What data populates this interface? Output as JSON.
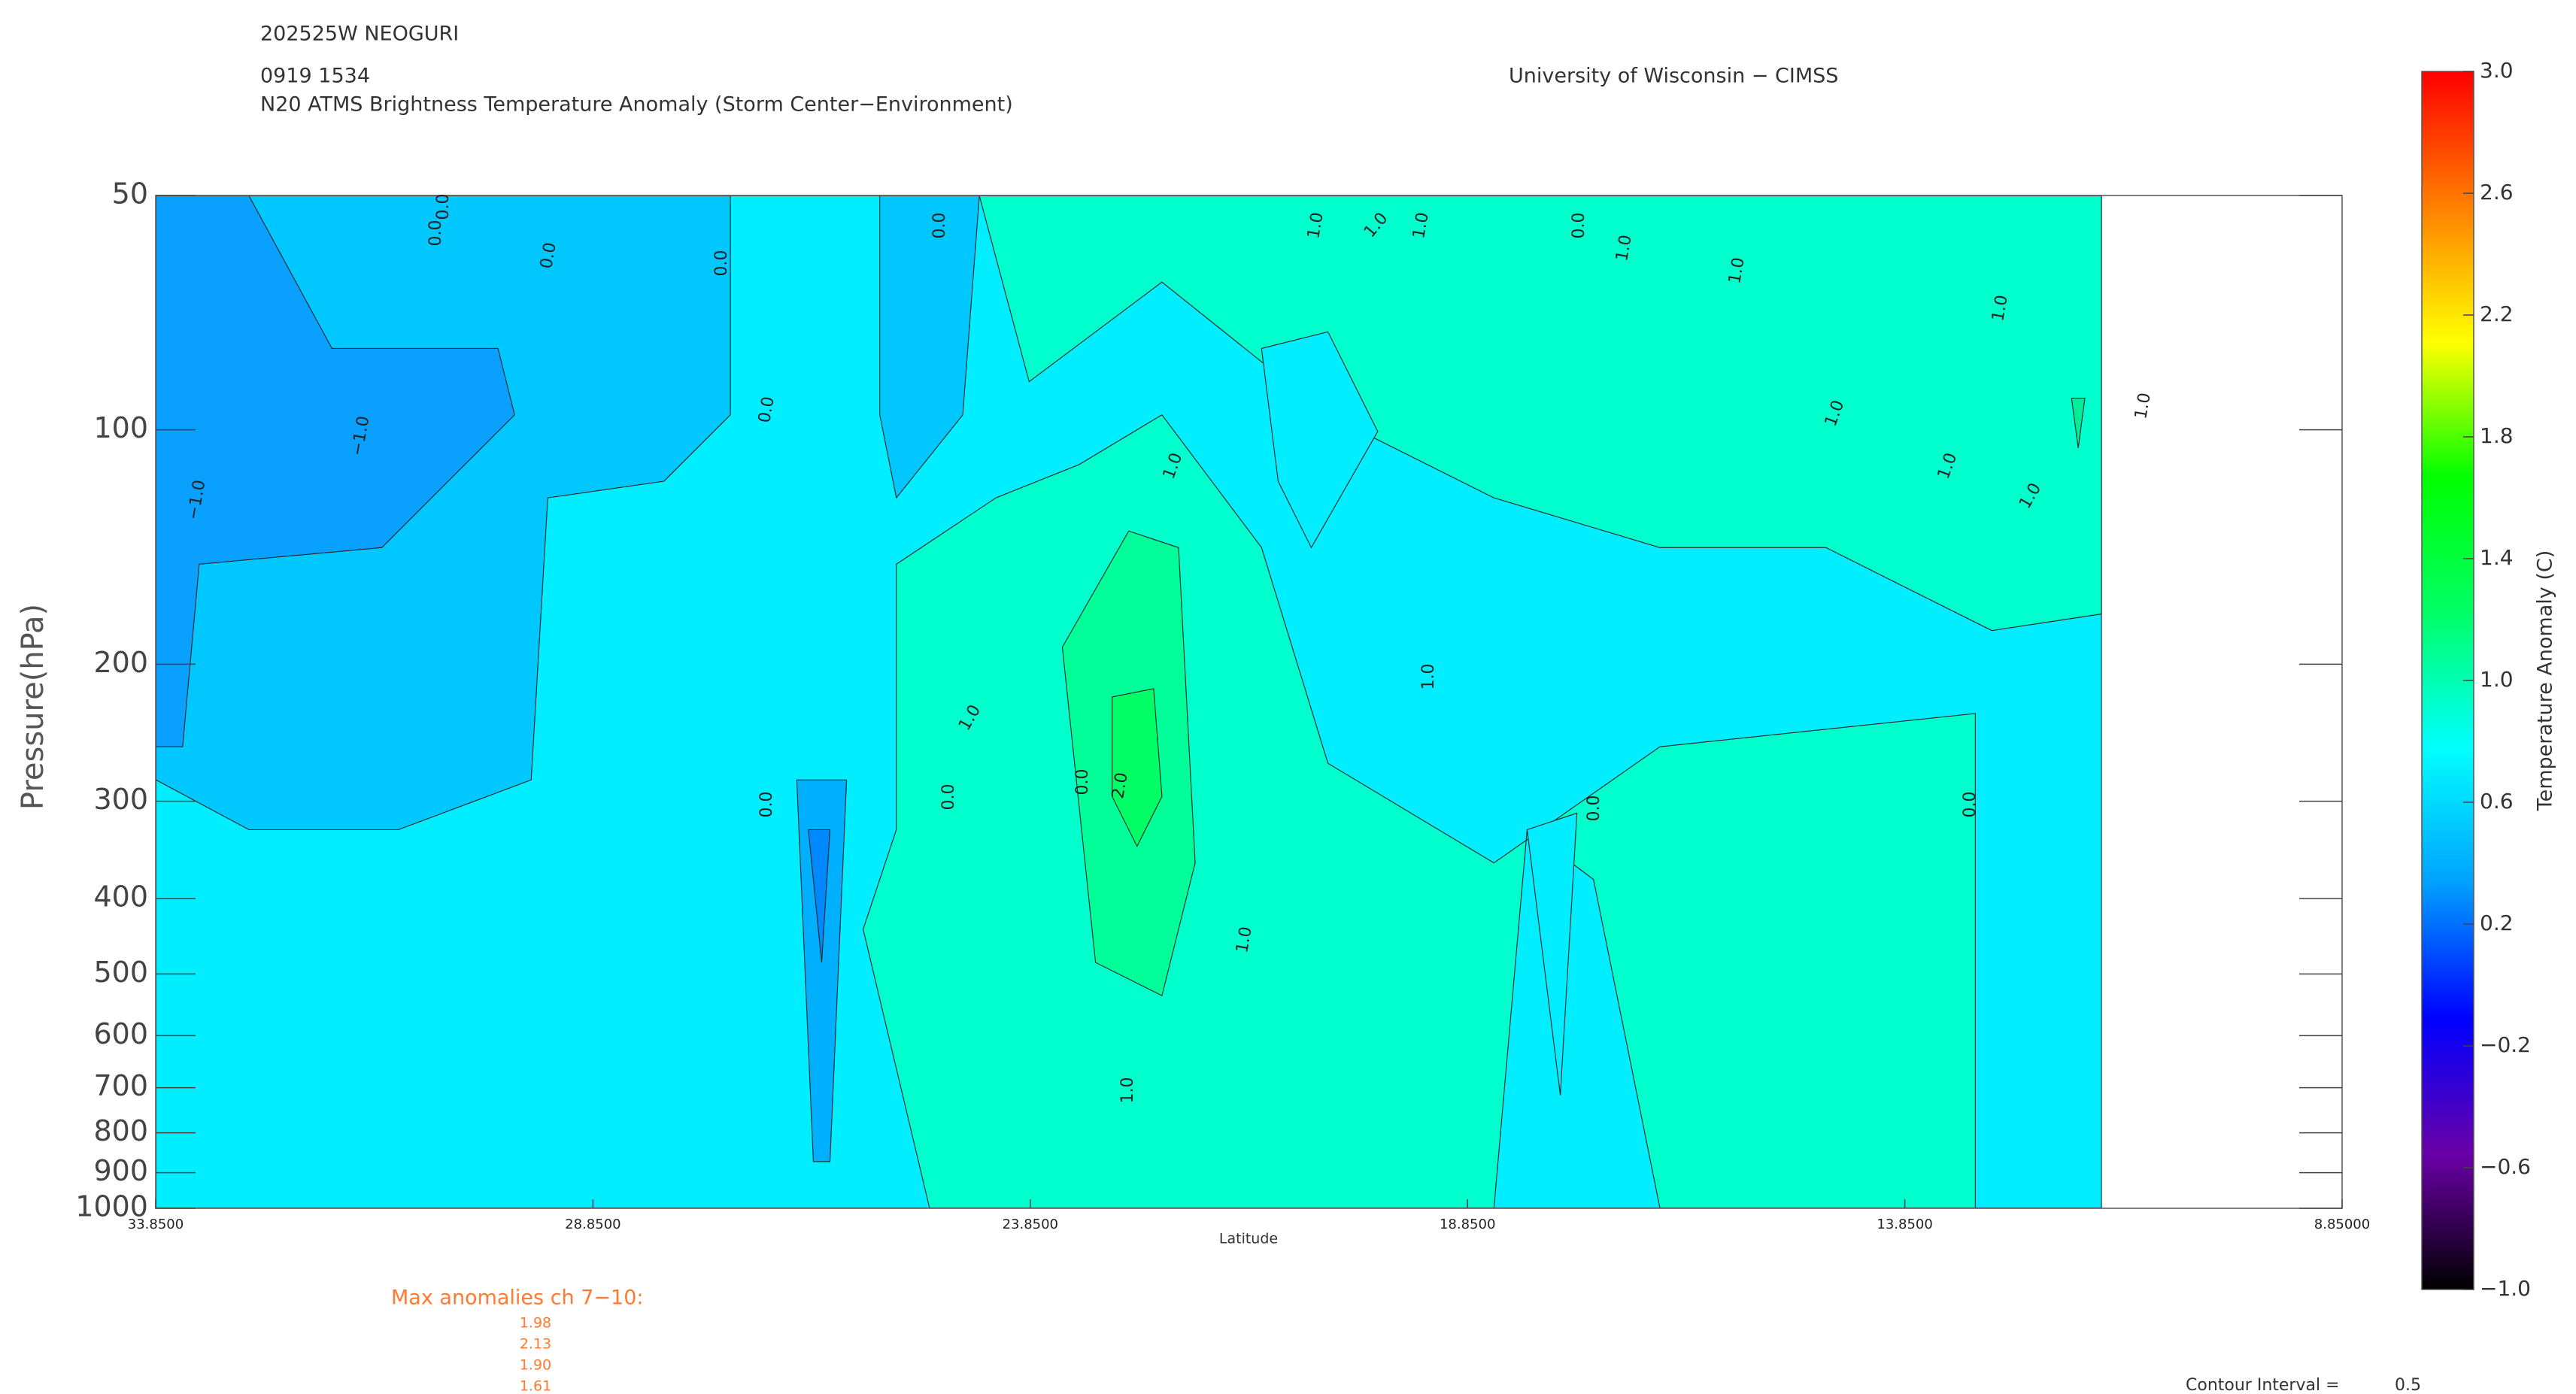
{
  "chart_data": {
    "type": "contour",
    "storm": "202525W NEOGURI",
    "datetime": "0919 1534",
    "title": "N20 ATMS Brightness Temperature Anomaly (Storm Center−Environment)",
    "credit": "University of Wisconsin − CIMSS",
    "y_label": "Pressure(hPa)",
    "x_label": "Latitude",
    "xlim": [
      33.85,
      8.85
    ],
    "xticks": [
      {
        "value": 33.85,
        "label": "33.8500"
      },
      {
        "value": 28.85,
        "label": "28.8500"
      },
      {
        "value": 23.85,
        "label": "23.8500"
      },
      {
        "value": 18.85,
        "label": "18.8500"
      },
      {
        "value": 13.85,
        "label": "13.8500"
      },
      {
        "value": 8.85,
        "label": "8.85000"
      }
    ],
    "ylim": [
      50,
      1000
    ],
    "y_log": true,
    "y_inverted": true,
    "yticks": [
      50,
      100,
      200,
      300,
      400,
      500,
      600,
      700,
      800,
      900,
      1000
    ],
    "contour_levels": [
      {
        "value": -1,
        "label": "−1.0"
      },
      {
        "value": 0,
        "label": "0.0"
      },
      {
        "value": 1,
        "label": "1.0"
      },
      {
        "value": 2,
        "label": "2.0"
      }
    ],
    "colorbar": {
      "label": "Temperature Anomaly (C)",
      "colormap": "rainbow",
      "lim": [
        -1,
        3
      ],
      "ticks": [
        {
          "value": -1,
          "label": "−1.0"
        },
        {
          "value": -0.6,
          "label": "−0.6"
        },
        {
          "value": -0.2,
          "label": "−0.2"
        },
        0.2,
        0.6,
        {
          "value": 1,
          "label": "1.0"
        },
        1.4,
        1.8,
        2.2,
        2.6,
        {
          "value": 3,
          "label": "3.0"
        }
      ]
    },
    "max_anomalies": {
      "title": "Max anomalies ch 7−10:",
      "values": [
        1.98,
        2.13,
        {
          "value": 1.9,
          "label": "1.90"
        },
        1.61
      ]
    },
    "contour_interval_label": "Contour Interval =",
    "contour_interval": 0.5
  }
}
